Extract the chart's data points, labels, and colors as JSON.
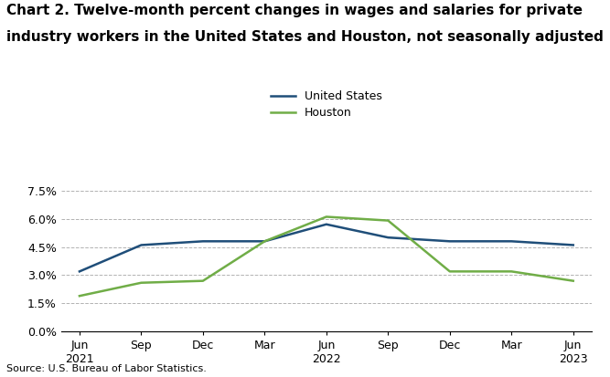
{
  "title_line1": "Chart 2. Twelve-month percent changes in wages and salaries for private",
  "title_line2": "industry workers in the United States and Houston, not seasonally adjusted",
  "x_labels": [
    "Jun\n2021",
    "Sep",
    "Dec",
    "Mar",
    "Jun\n2022",
    "Sep",
    "Dec",
    "Mar",
    "Jun\n2023"
  ],
  "us_data": [
    3.2,
    4.6,
    4.8,
    4.8,
    5.7,
    5.0,
    4.8,
    4.8,
    4.6
  ],
  "houston_data": [
    1.9,
    2.6,
    2.7,
    4.8,
    6.1,
    5.9,
    3.2,
    3.2,
    2.7
  ],
  "us_color": "#1f4e79",
  "houston_color": "#70ad47",
  "ytick_labels": [
    "0.0%",
    "1.5%",
    "3.0%",
    "4.5%",
    "6.0%",
    "7.5%"
  ],
  "ytick_values": [
    0.0,
    1.5,
    3.0,
    4.5,
    6.0,
    7.5
  ],
  "ylim_max": 9.0,
  "source_text": "Source: U.S. Bureau of Labor Statistics.",
  "legend_us": "United States",
  "legend_houston": "Houston",
  "grid_color": "#aaaaaa",
  "background_color": "#ffffff",
  "title_fontsize": 11,
  "tick_fontsize": 9,
  "source_fontsize": 8,
  "legend_fontsize": 9,
  "linewidth": 1.8
}
